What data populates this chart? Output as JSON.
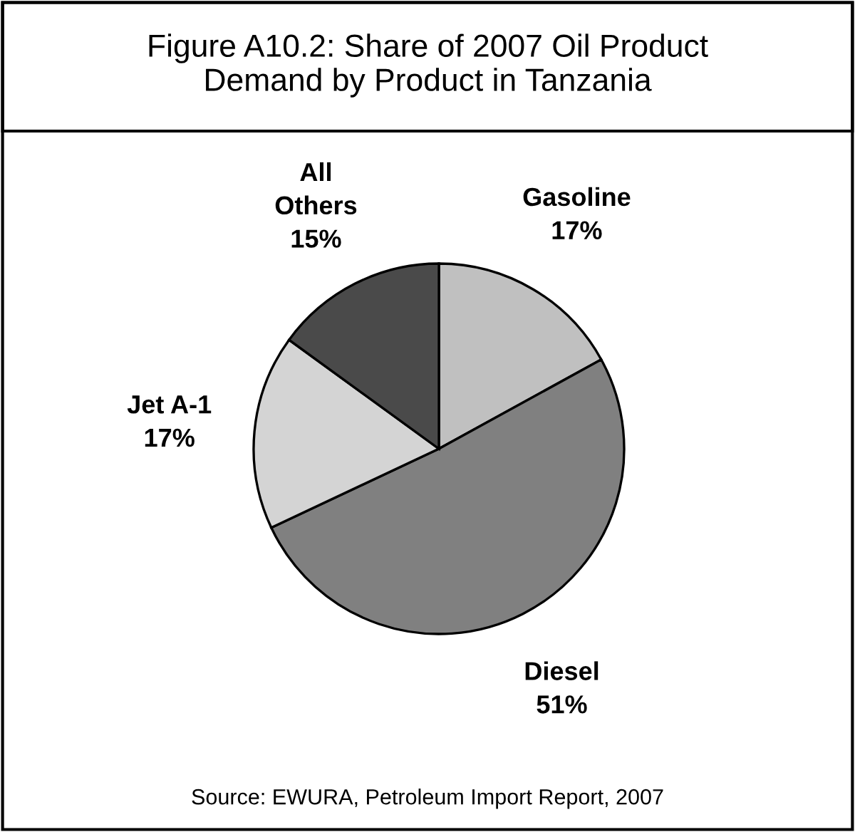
{
  "chart_data": {
    "type": "pie",
    "title": "Figure A10.2: Share of 2007 Oil Product Demand by Product in Tanzania",
    "categories": [
      "Gasoline",
      "Diesel",
      "Jet A-1",
      "All Others"
    ],
    "values": [
      17,
      51,
      17,
      15
    ],
    "colors": [
      "#c0c0c0",
      "#808080",
      "#d4d4d4",
      "#4a4a4a"
    ],
    "value_labels": [
      "17%",
      "51%",
      "17%",
      "15%"
    ],
    "annotations": [
      "Source: EWURA, Petroleum Import Report, 2007"
    ]
  }
}
